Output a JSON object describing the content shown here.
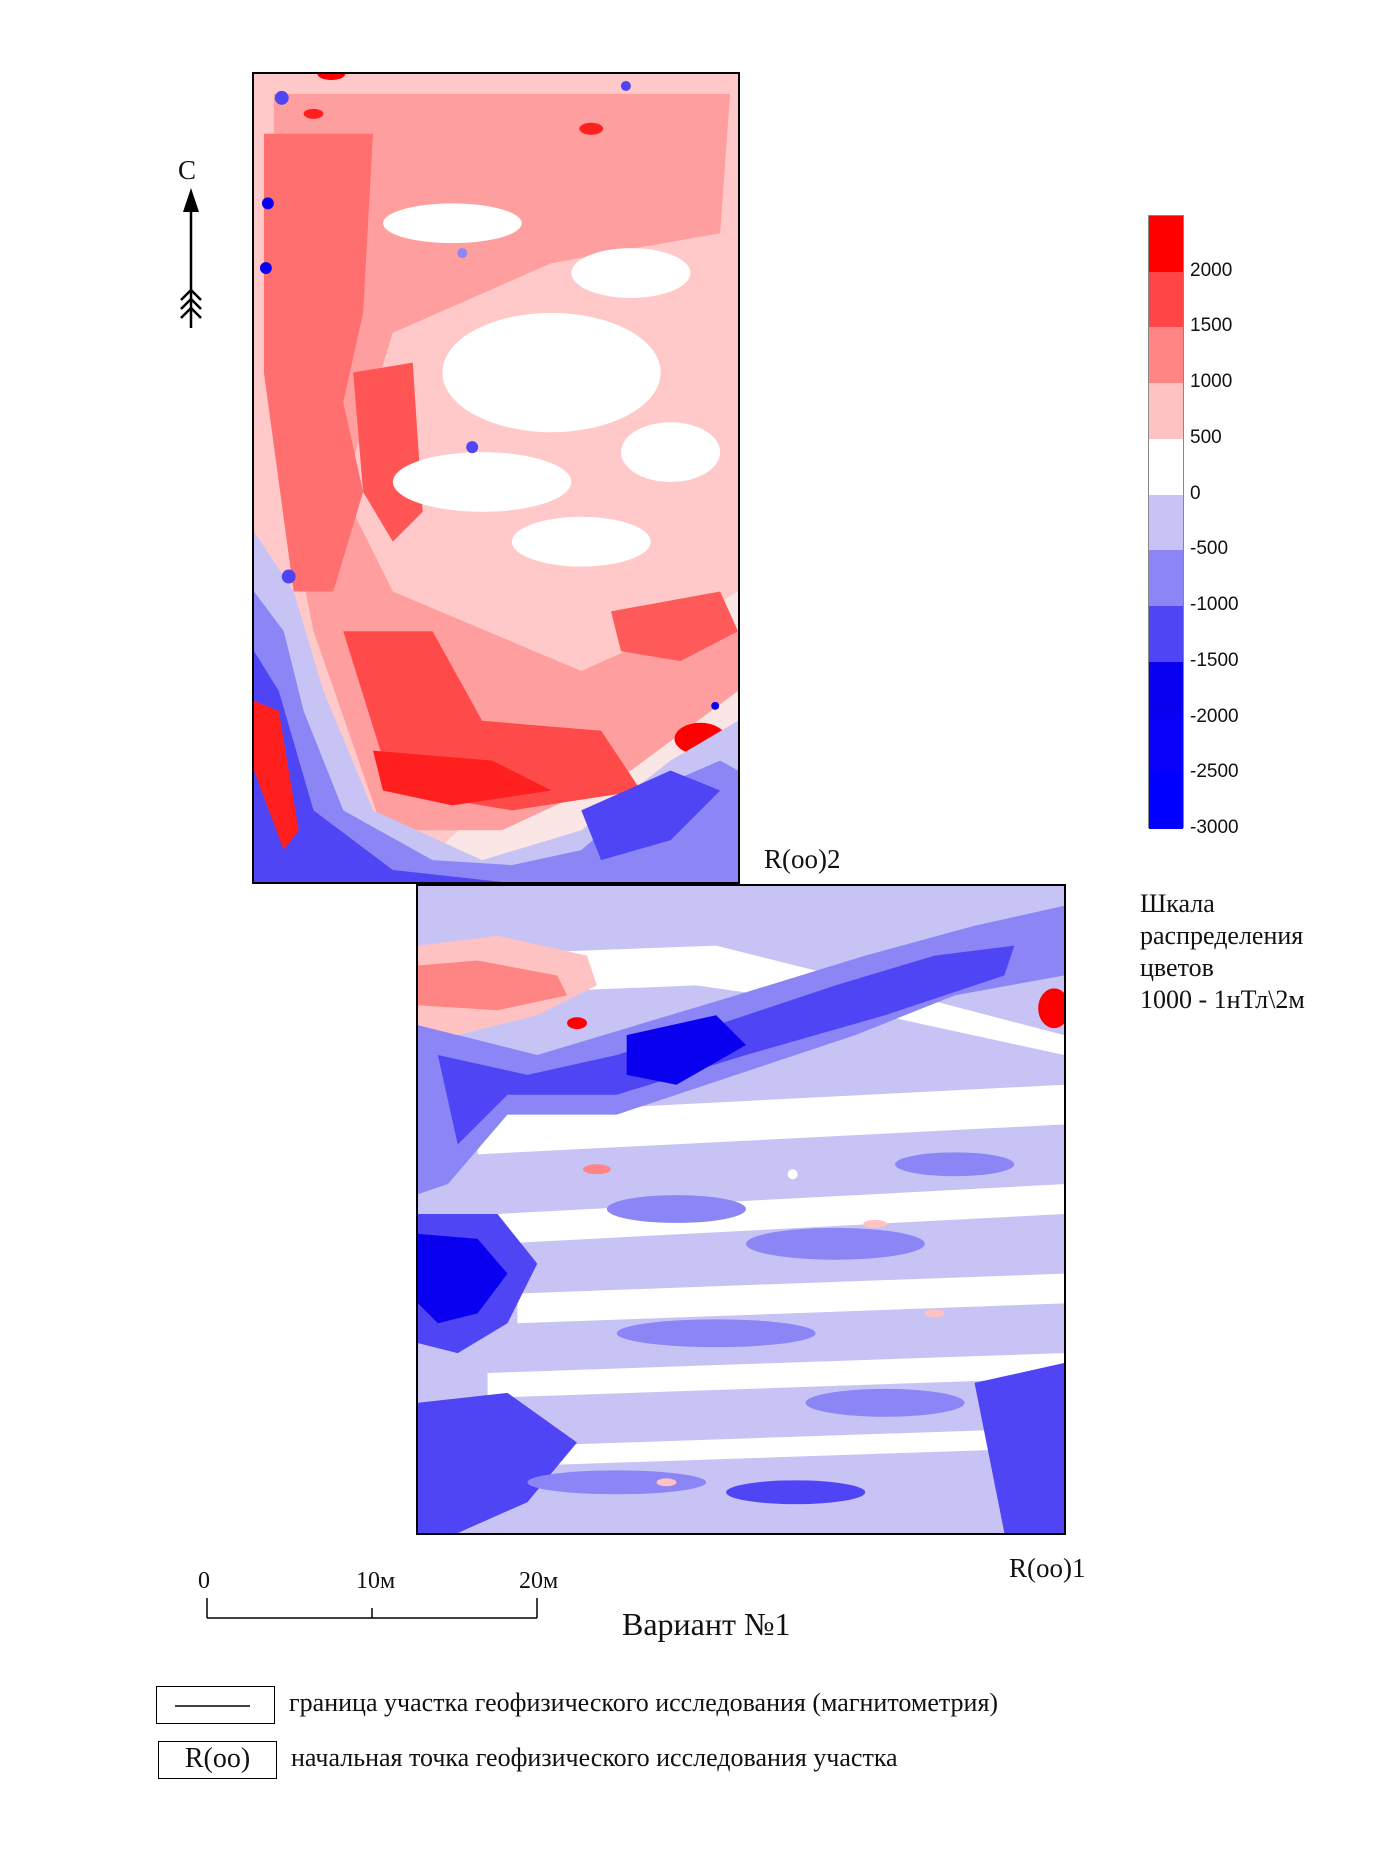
{
  "north": {
    "label": "С"
  },
  "map": {
    "upper_block_corner_label": "R(оо)2",
    "lower_block_corner_label": "R(оо)1"
  },
  "scale_bar": {
    "ticks": [
      "0",
      "10м",
      "20м"
    ]
  },
  "variant_title": "Вариант №1",
  "color_scale": {
    "colors": [
      "#ff0000",
      "#ff4545",
      "#ff8585",
      "#ffc2c2",
      "#ffffff",
      "#c7c3f5",
      "#8b85f5",
      "#4f45f5",
      "#0a00f0",
      "#0800f8",
      "#0000ff"
    ],
    "tick_labels": [
      "2000",
      "1500",
      "1000",
      "500",
      "0",
      "-500",
      "-1000",
      "-1500",
      "-2000",
      "-2500",
      "-3000"
    ],
    "caption_lines": [
      "Шкала",
      "распределения",
      "цветов",
      "1000 - 1нТл\\2м"
    ]
  },
  "key": {
    "boundary_text": "граница участка геофизического исследования (магнитометрия)",
    "start_point_symbol": "R(оо)",
    "start_point_text": "начальная точка геофизического исследования участка"
  }
}
